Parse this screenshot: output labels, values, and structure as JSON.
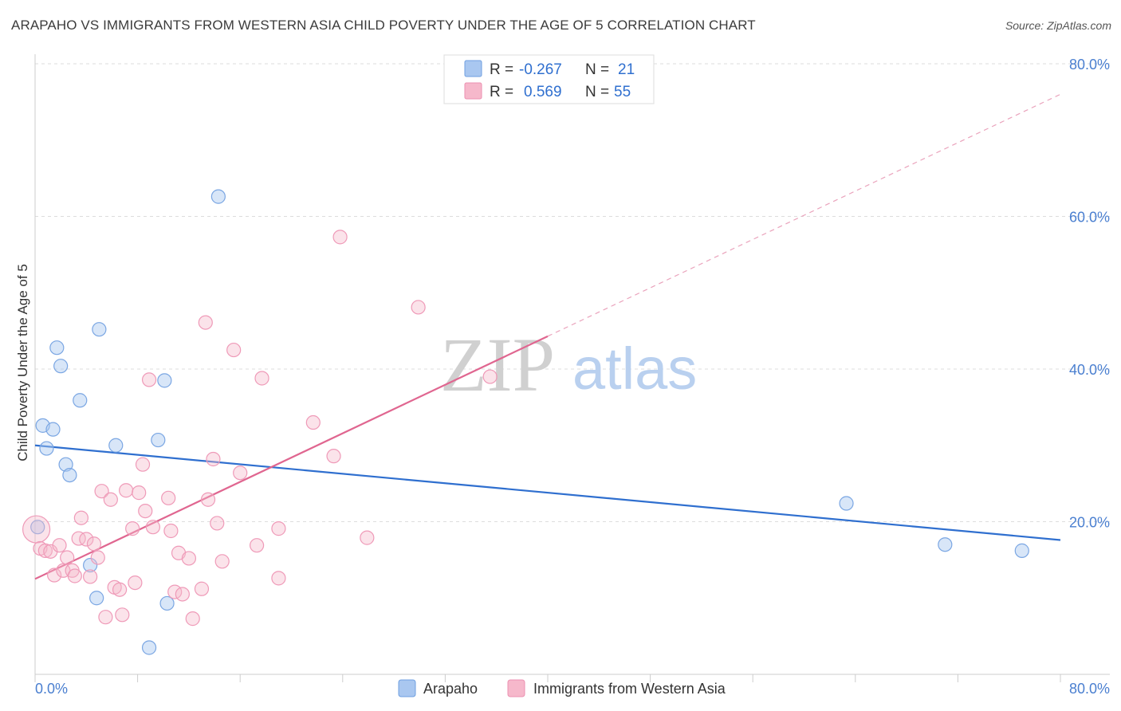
{
  "title": "ARAPAHO VS IMMIGRANTS FROM WESTERN ASIA CHILD POVERTY UNDER THE AGE OF 5 CORRELATION CHART",
  "source": "Source: ZipAtlas.com",
  "watermark": {
    "zip": "ZIP",
    "atlas": "atlas"
  },
  "colors": {
    "blue": "#2f6fcf",
    "blue_fill": "#a9c7f0",
    "pink": "#e06690",
    "pink_fill": "#f6b8cb",
    "grid": "#dddddd",
    "tick": "#4a7fd0"
  },
  "chart_data": {
    "type": "scatter",
    "title": "ARAPAHO VS IMMIGRANTS FROM WESTERN ASIA CHILD POVERTY UNDER THE AGE OF 5 CORRELATION CHART",
    "xlabel": "",
    "ylabel": "Child Poverty Under the Age of 5",
    "xlim": [
      0,
      80
    ],
    "ylim": [
      0,
      80
    ],
    "x_tick_labels": {
      "min": "0.0%",
      "max": "80.0%"
    },
    "y_ticks": [
      20,
      40,
      60,
      80
    ],
    "y_tick_labels": [
      "20.0%",
      "40.0%",
      "60.0%",
      "80.0%"
    ],
    "legend": [
      {
        "swatch": "blue",
        "r_label": "R =",
        "r_value": "-0.267",
        "n_label": "N =",
        "n_value": "21"
      },
      {
        "swatch": "pink",
        "r_label": "R =",
        "r_value": "0.569",
        "n_label": "N =",
        "n_value": "55"
      }
    ],
    "series": [
      {
        "name": "Arapaho",
        "color": "#2f6fcf",
        "points": [
          [
            0.2,
            19.3
          ],
          [
            0.6,
            32.6
          ],
          [
            0.9,
            29.6
          ],
          [
            1.4,
            32.1
          ],
          [
            1.7,
            42.8
          ],
          [
            2.0,
            40.4
          ],
          [
            2.4,
            27.5
          ],
          [
            2.7,
            26.1
          ],
          [
            3.5,
            35.9
          ],
          [
            4.3,
            14.3
          ],
          [
            4.8,
            10.0
          ],
          [
            5.0,
            45.2
          ],
          [
            6.3,
            30.0
          ],
          [
            8.9,
            3.5
          ],
          [
            9.6,
            30.7
          ],
          [
            10.1,
            38.5
          ],
          [
            10.3,
            9.3
          ],
          [
            14.3,
            62.6
          ],
          [
            63.3,
            22.4
          ],
          [
            71.0,
            17.0
          ],
          [
            77.0,
            16.2
          ]
        ],
        "trend": {
          "x": [
            0,
            80
          ],
          "y": [
            30.0,
            17.6
          ],
          "style": "solid"
        }
      },
      {
        "name": "Immigrants from Western Asia",
        "color": "#e06690",
        "points": [
          [
            0.1,
            19.0
          ],
          [
            0.4,
            16.5
          ],
          [
            0.8,
            16.2
          ],
          [
            1.2,
            16.1
          ],
          [
            1.5,
            13.0
          ],
          [
            1.9,
            16.9
          ],
          [
            2.2,
            13.6
          ],
          [
            2.5,
            15.3
          ],
          [
            2.9,
            13.6
          ],
          [
            3.1,
            12.9
          ],
          [
            3.4,
            17.8
          ],
          [
            3.6,
            20.5
          ],
          [
            4.0,
            17.7
          ],
          [
            4.3,
            12.8
          ],
          [
            4.6,
            17.1
          ],
          [
            4.9,
            15.3
          ],
          [
            5.2,
            24.0
          ],
          [
            5.5,
            7.5
          ],
          [
            5.9,
            22.9
          ],
          [
            6.2,
            11.4
          ],
          [
            6.6,
            11.1
          ],
          [
            6.8,
            7.8
          ],
          [
            7.1,
            24.1
          ],
          [
            7.6,
            19.1
          ],
          [
            7.8,
            12.0
          ],
          [
            8.1,
            23.8
          ],
          [
            8.4,
            27.5
          ],
          [
            8.6,
            21.4
          ],
          [
            8.9,
            38.6
          ],
          [
            9.2,
            19.3
          ],
          [
            10.4,
            23.1
          ],
          [
            10.6,
            18.8
          ],
          [
            10.9,
            10.8
          ],
          [
            11.2,
            15.9
          ],
          [
            11.5,
            10.5
          ],
          [
            12.0,
            15.2
          ],
          [
            12.3,
            7.3
          ],
          [
            13.0,
            11.2
          ],
          [
            13.3,
            46.1
          ],
          [
            13.5,
            22.9
          ],
          [
            13.9,
            28.2
          ],
          [
            14.2,
            19.8
          ],
          [
            14.6,
            14.8
          ],
          [
            15.5,
            42.5
          ],
          [
            16.0,
            26.4
          ],
          [
            17.3,
            16.9
          ],
          [
            17.7,
            38.8
          ],
          [
            19.0,
            12.6
          ],
          [
            19.0,
            19.1
          ],
          [
            21.7,
            33.0
          ],
          [
            23.3,
            28.6
          ],
          [
            23.8,
            57.3
          ],
          [
            25.9,
            17.9
          ],
          [
            29.9,
            48.1
          ],
          [
            35.5,
            39.0
          ]
        ],
        "trend": {
          "x": [
            0,
            40
          ],
          "y": [
            12.5,
            44.3
          ],
          "style": "solid",
          "extension": {
            "x": [
              40,
              80
            ],
            "y": [
              44.3,
              76.0
            ],
            "style": "dashed"
          }
        }
      }
    ],
    "bottom_legend": [
      "Arapaho",
      "Immigrants from Western Asia"
    ]
  }
}
